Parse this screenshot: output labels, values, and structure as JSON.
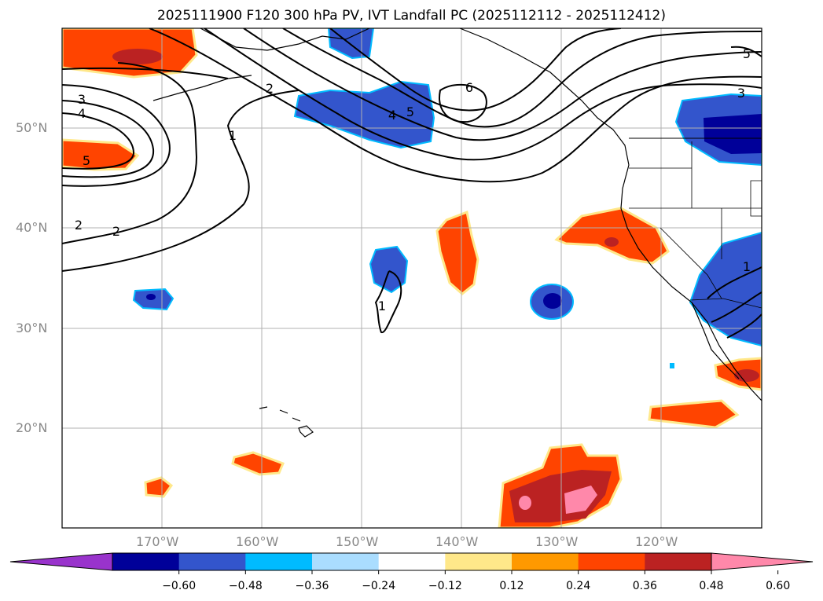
{
  "title": "2025111900 F120 300 hPa PV, IVT Landfall PC (2025112112 - 2025112412)",
  "map": {
    "lat_labels": [
      "50°N",
      "40°N",
      "30°N",
      "20°N"
    ],
    "lon_labels": [
      "170°W",
      "160°W",
      "150°W",
      "140°W",
      "130°W",
      "120°W"
    ],
    "contour_labels": [
      "3",
      "4",
      "5",
      "2",
      "1",
      "2",
      "2",
      "4",
      "5",
      "6",
      "1",
      "1",
      "3",
      "5"
    ],
    "grid": true
  },
  "colorbar": {
    "ticks": [
      "−0.60",
      "−0.48",
      "−0.36",
      "−0.24",
      "−0.12",
      "0.12",
      "0.24",
      "0.36",
      "0.48",
      "0.60"
    ],
    "colors": [
      "#9933cc",
      "#000099",
      "#3355cc",
      "#00bbff",
      "#aaddff",
      "#ffffff",
      "#ffe88a",
      "#ff9900",
      "#ff4400",
      "#bb2222",
      "#ff88aa"
    ],
    "extend": "both"
  }
}
